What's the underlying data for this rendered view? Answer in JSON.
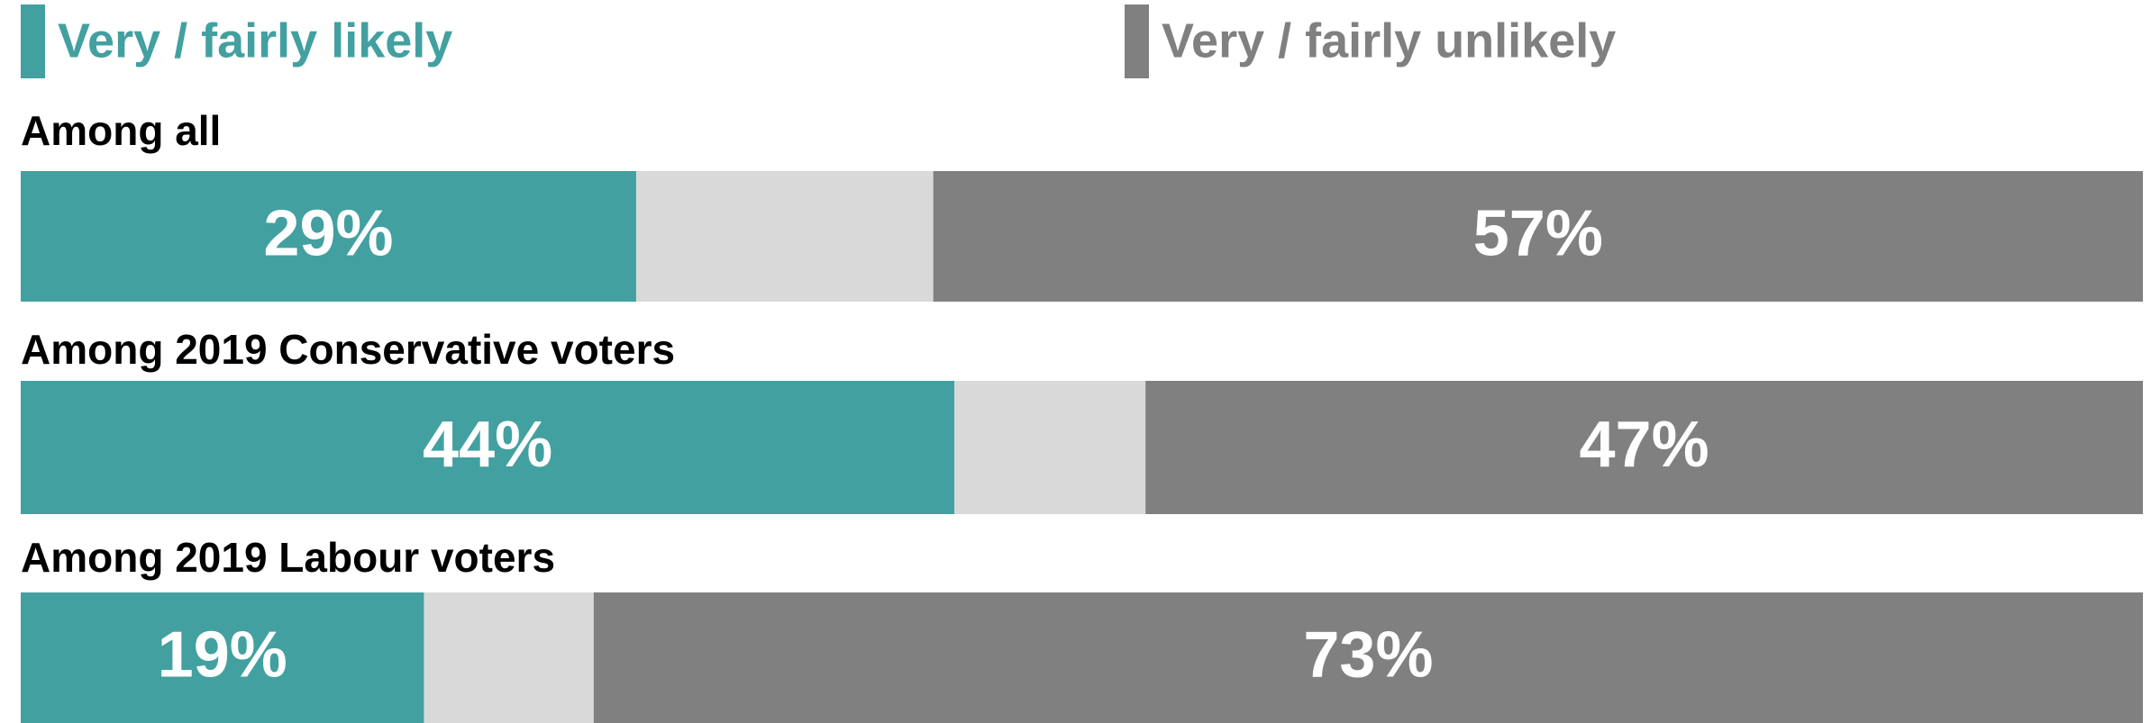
{
  "chart_data": {
    "type": "stacked-bar-horizontal",
    "categories": [
      "Among all",
      "Among 2019 Conservative voters",
      "Among 2019 Labour voters"
    ],
    "series": [
      {
        "name": "Very / fairly likely",
        "color": "#43a0a0",
        "values": [
          29,
          44,
          19
        ],
        "value_labels": [
          "29%",
          "44%",
          "19%"
        ]
      },
      {
        "color": "#d9d9d9",
        "values": [
          14,
          9,
          8
        ]
      },
      {
        "name": "Very / fairly unlikely",
        "color": "#808080",
        "values": [
          57,
          47,
          73
        ],
        "value_labels": [
          "57%",
          "47%",
          "73%"
        ]
      }
    ],
    "xlim": [
      0,
      100
    ]
  }
}
